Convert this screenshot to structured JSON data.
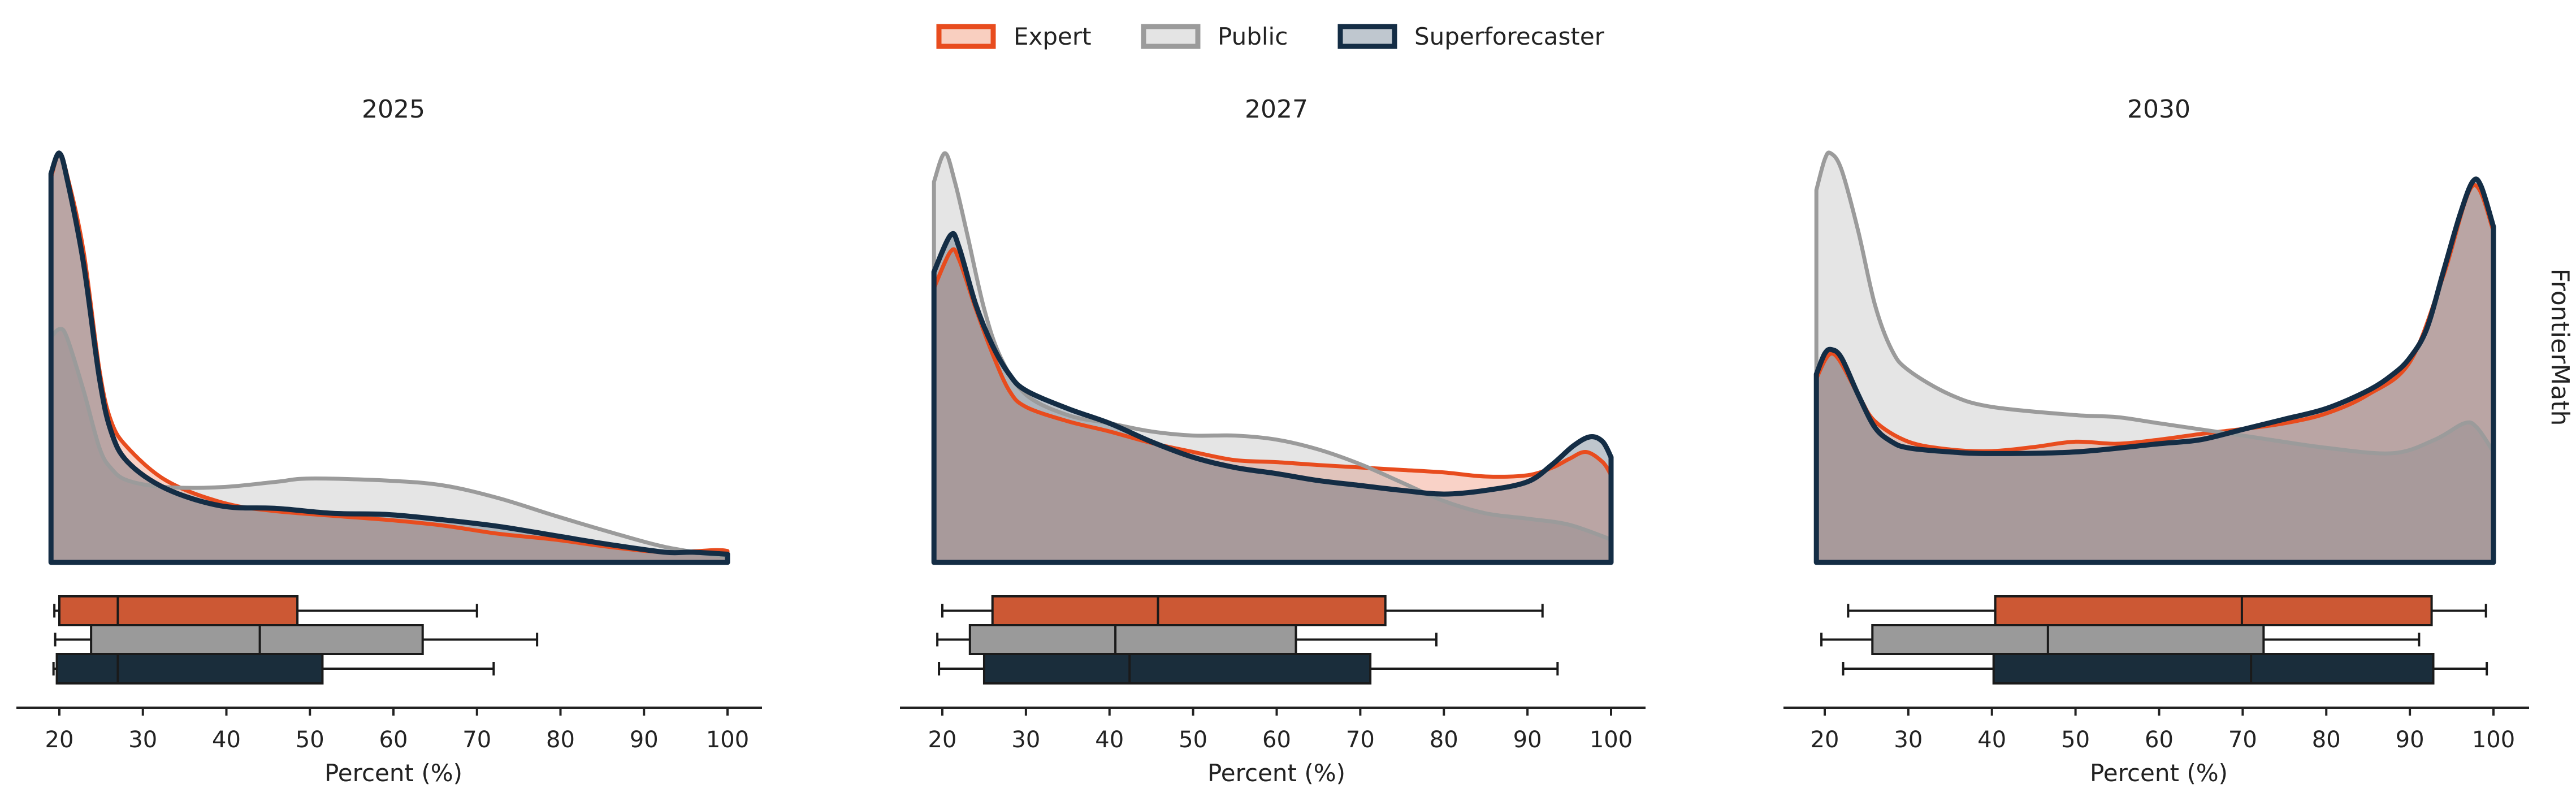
{
  "legend": {
    "position": "top-center",
    "items": [
      {
        "label": "Expert",
        "stroke": "#e84c1e",
        "fill": "#f9cfc0"
      },
      {
        "label": "Public",
        "stroke": "#9b9b9b",
        "fill": "#e4e4e4"
      },
      {
        "label": "Superforecaster",
        "stroke": "#142d45",
        "fill": "#bfc7cf"
      }
    ]
  },
  "row_label": "FrontierMath",
  "colors": {
    "expert_box": "#cc5834",
    "public_box": "#9a9a9a",
    "superforecaster_box": "#1a2d3b",
    "expert_fill": "rgba(232,76,30,0.25)",
    "public_fill": "rgba(150,150,150,0.25)",
    "superforecaster_fill": "rgba(20,45,69,0.27)"
  },
  "chart_data": [
    {
      "type": "kde+boxplot",
      "title": "2025",
      "xlabel": "Percent (%)",
      "xlim": [
        19,
        100
      ],
      "xticks": [
        20,
        30,
        40,
        50,
        60,
        70,
        80,
        90,
        100
      ],
      "y_axis_shown": false,
      "series": [
        {
          "name": "Expert",
          "density_relative": [
            [
              19,
              0.94
            ],
            [
              20,
              1.0
            ],
            [
              21,
              0.94
            ],
            [
              22.9,
              0.76
            ],
            [
              24.8,
              0.47
            ],
            [
              26.2,
              0.345
            ],
            [
              28.2,
              0.28
            ],
            [
              32.8,
              0.2
            ],
            [
              39.4,
              0.147
            ],
            [
              46,
              0.125
            ],
            [
              59.3,
              0.104
            ],
            [
              66,
              0.09
            ],
            [
              72.6,
              0.07
            ],
            [
              79.2,
              0.056
            ],
            [
              85.8,
              0.038
            ],
            [
              92.5,
              0.025
            ],
            [
              98.5,
              0.03
            ],
            [
              100,
              0.028
            ]
          ],
          "box": {
            "whisker_low": 19.4,
            "q1": 20,
            "median": 27,
            "q3": 48.5,
            "whisker_high": 70
          }
        },
        {
          "name": "Public",
          "density_relative": [
            [
              19,
              0.55
            ],
            [
              20,
              0.57
            ],
            [
              20.9,
              0.55
            ],
            [
              22.9,
              0.42
            ],
            [
              24.8,
              0.28
            ],
            [
              26.2,
              0.23
            ],
            [
              28.2,
              0.2
            ],
            [
              32.8,
              0.184
            ],
            [
              39.4,
              0.184
            ],
            [
              46,
              0.197
            ],
            [
              50,
              0.205
            ],
            [
              59.3,
              0.2
            ],
            [
              66,
              0.188
            ],
            [
              72.6,
              0.157
            ],
            [
              79.2,
              0.115
            ],
            [
              85.8,
              0.075
            ],
            [
              92.5,
              0.038
            ],
            [
              100,
              0.013
            ]
          ],
          "box": {
            "whisker_low": 19.5,
            "q1": 23.8,
            "median": 44,
            "q3": 63.5,
            "whisker_high": 77.2
          }
        },
        {
          "name": "Superforecaster",
          "density_relative": [
            [
              19,
              0.95
            ],
            [
              20,
              1.0
            ],
            [
              21,
              0.93
            ],
            [
              22.9,
              0.73
            ],
            [
              24.8,
              0.45
            ],
            [
              26.2,
              0.32
            ],
            [
              28.2,
              0.245
            ],
            [
              32.8,
              0.18
            ],
            [
              39.4,
              0.138
            ],
            [
              46,
              0.132
            ],
            [
              52.7,
              0.12
            ],
            [
              59.3,
              0.117
            ],
            [
              66,
              0.104
            ],
            [
              72.6,
              0.088
            ],
            [
              79.2,
              0.066
            ],
            [
              85.8,
              0.044
            ],
            [
              92.5,
              0.025
            ],
            [
              95.8,
              0.025
            ],
            [
              100,
              0.02
            ]
          ],
          "box": {
            "whisker_low": 19.3,
            "q1": 19.7,
            "median": 27,
            "q3": 51.5,
            "whisker_high": 72
          }
        }
      ]
    },
    {
      "type": "kde+boxplot",
      "title": "2027",
      "xlabel": "Percent (%)",
      "xlim": [
        19,
        100
      ],
      "xticks": [
        20,
        30,
        40,
        50,
        60,
        70,
        80,
        90,
        100
      ],
      "y_axis_shown": false,
      "series": [
        {
          "name": "Expert",
          "density_relative": [
            [
              19,
              0.67
            ],
            [
              21,
              0.76
            ],
            [
              22,
              0.74
            ],
            [
              24,
              0.62
            ],
            [
              26,
              0.51
            ],
            [
              28,
              0.42
            ],
            [
              30,
              0.38
            ],
            [
              35,
              0.345
            ],
            [
              40,
              0.32
            ],
            [
              45,
              0.292
            ],
            [
              50,
              0.27
            ],
            [
              55,
              0.25
            ],
            [
              60,
              0.245
            ],
            [
              65,
              0.238
            ],
            [
              70,
              0.232
            ],
            [
              75,
              0.226
            ],
            [
              80,
              0.22
            ],
            [
              85,
              0.21
            ],
            [
              90,
              0.213
            ],
            [
              93,
              0.232
            ],
            [
              95,
              0.253
            ],
            [
              97,
              0.27
            ],
            [
              99,
              0.245
            ],
            [
              100,
              0.213
            ]
          ],
          "box": {
            "whisker_low": 20,
            "q1": 26,
            "median": 45.8,
            "q3": 73,
            "whisker_high": 91.8
          }
        },
        {
          "name": "Public",
          "density_relative": [
            [
              19,
              0.93
            ],
            [
              20.3,
              1.0
            ],
            [
              21.5,
              0.93
            ],
            [
              23,
              0.8
            ],
            [
              25,
              0.62
            ],
            [
              27,
              0.5
            ],
            [
              30,
              0.41
            ],
            [
              35,
              0.36
            ],
            [
              40,
              0.34
            ],
            [
              45,
              0.32
            ],
            [
              50,
              0.31
            ],
            [
              55,
              0.31
            ],
            [
              60,
              0.3
            ],
            [
              65,
              0.276
            ],
            [
              70,
              0.24
            ],
            [
              75,
              0.195
            ],
            [
              80,
              0.15
            ],
            [
              85,
              0.12
            ],
            [
              90,
              0.107
            ],
            [
              95,
              0.092
            ],
            [
              100,
              0.056
            ]
          ],
          "box": {
            "whisker_low": 19.4,
            "q1": 23.3,
            "median": 40.7,
            "q3": 62.3,
            "whisker_high": 79.1
          }
        },
        {
          "name": "Superforecaster",
          "density_relative": [
            [
              19,
              0.71
            ],
            [
              21,
              0.8
            ],
            [
              22,
              0.77
            ],
            [
              24,
              0.63
            ],
            [
              26,
              0.53
            ],
            [
              28,
              0.46
            ],
            [
              30,
              0.42
            ],
            [
              35,
              0.376
            ],
            [
              40,
              0.34
            ],
            [
              45,
              0.295
            ],
            [
              50,
              0.257
            ],
            [
              55,
              0.232
            ],
            [
              60,
              0.217
            ],
            [
              65,
              0.2
            ],
            [
              70,
              0.188
            ],
            [
              75,
              0.176
            ],
            [
              80,
              0.167
            ],
            [
              85,
              0.176
            ],
            [
              90,
              0.197
            ],
            [
              93,
              0.24
            ],
            [
              95.5,
              0.285
            ],
            [
              97.5,
              0.307
            ],
            [
              99,
              0.295
            ],
            [
              100,
              0.257
            ]
          ],
          "box": {
            "whisker_low": 19.6,
            "q1": 25,
            "median": 42.4,
            "q3": 71.2,
            "whisker_high": 93.6
          }
        }
      ]
    },
    {
      "type": "kde+boxplot",
      "title": "2030",
      "xlabel": "Percent (%)",
      "xlim": [
        19,
        100
      ],
      "xticks": [
        20,
        30,
        40,
        50,
        60,
        70,
        80,
        90,
        100
      ],
      "y_axis_shown": false,
      "series": [
        {
          "name": "Expert",
          "density_relative": [
            [
              19,
              0.45
            ],
            [
              21,
              0.51
            ],
            [
              24,
              0.41
            ],
            [
              26,
              0.345
            ],
            [
              30,
              0.295
            ],
            [
              35,
              0.276
            ],
            [
              40,
              0.272
            ],
            [
              45,
              0.282
            ],
            [
              50,
              0.295
            ],
            [
              55,
              0.29
            ],
            [
              60,
              0.3
            ],
            [
              65,
              0.314
            ],
            [
              70,
              0.326
            ],
            [
              75,
              0.34
            ],
            [
              80,
              0.364
            ],
            [
              85,
              0.41
            ],
            [
              90,
              0.49
            ],
            [
              94,
              0.7
            ],
            [
              97.5,
              0.92
            ],
            [
              100,
              0.81
            ]
          ],
          "box": {
            "whisker_low": 22.8,
            "q1": 40.4,
            "median": 69.9,
            "q3": 92.6,
            "whisker_high": 99.1
          }
        },
        {
          "name": "Public",
          "density_relative": [
            [
              19,
              0.91
            ],
            [
              20,
              0.985
            ],
            [
              20.7,
              1.0
            ],
            [
              22,
              0.96
            ],
            [
              24,
              0.81
            ],
            [
              26,
              0.63
            ],
            [
              28,
              0.52
            ],
            [
              30,
              0.47
            ],
            [
              35,
              0.41
            ],
            [
              40,
              0.38
            ],
            [
              50,
              0.36
            ],
            [
              55,
              0.355
            ],
            [
              60,
              0.34
            ],
            [
              70,
              0.31
            ],
            [
              80,
              0.28
            ],
            [
              88,
              0.267
            ],
            [
              93,
              0.3
            ],
            [
              96.5,
              0.34
            ],
            [
              98,
              0.33
            ],
            [
              100,
              0.27
            ]
          ],
          "box": {
            "whisker_low": 19.6,
            "q1": 25.7,
            "median": 46.7,
            "q3": 72.5,
            "whisker_high": 91.1
          }
        },
        {
          "name": "Superforecaster",
          "density_relative": [
            [
              19,
              0.46
            ],
            [
              20,
              0.51
            ],
            [
              20.8,
              0.52
            ],
            [
              22,
              0.5
            ],
            [
              24,
              0.41
            ],
            [
              26,
              0.33
            ],
            [
              28,
              0.295
            ],
            [
              30,
              0.28
            ],
            [
              35,
              0.27
            ],
            [
              40,
              0.266
            ],
            [
              50,
              0.27
            ],
            [
              60,
              0.29
            ],
            [
              65,
              0.3
            ],
            [
              70,
              0.325
            ],
            [
              75,
              0.35
            ],
            [
              80,
              0.376
            ],
            [
              85,
              0.42
            ],
            [
              88,
              0.46
            ],
            [
              90,
              0.5
            ],
            [
              92,
              0.57
            ],
            [
              94,
              0.71
            ],
            [
              96,
              0.85
            ],
            [
              97.5,
              0.93
            ],
            [
              98.5,
              0.92
            ],
            [
              100,
              0.82
            ]
          ],
          "box": {
            "whisker_low": 22.2,
            "q1": 40.2,
            "median": 71,
            "q3": 92.8,
            "whisker_high": 99.2
          }
        }
      ]
    }
  ]
}
